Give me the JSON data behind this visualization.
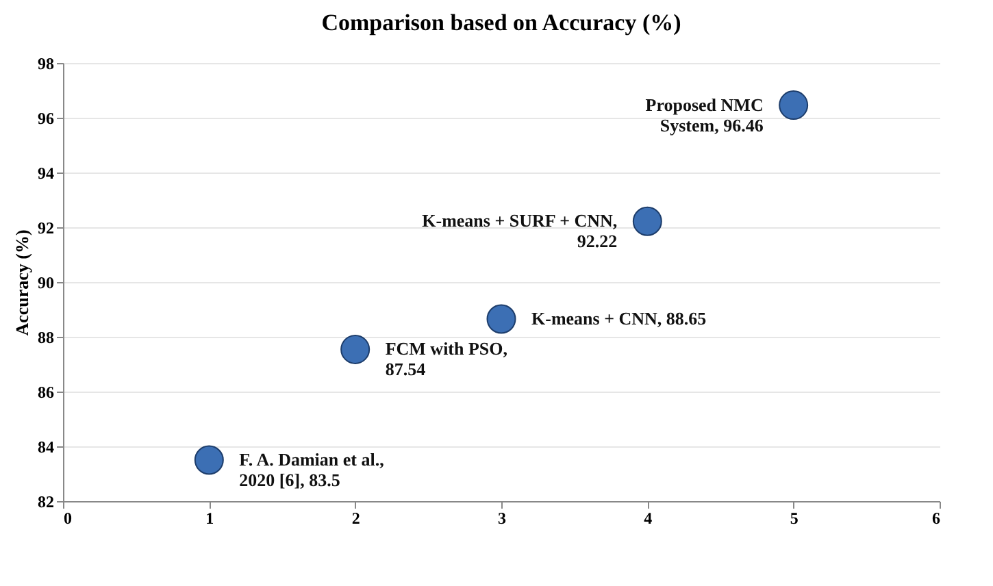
{
  "chart_data": {
    "type": "scatter",
    "title": "Comparison based on Accuracy (%)",
    "ylabel": "Accuracy (%)",
    "x": [
      1,
      2,
      3,
      4,
      5
    ],
    "series": [
      {
        "color": "#3c6fb4",
        "values": [
          83.5,
          87.54,
          88.65,
          92.22,
          96.46
        ]
      }
    ],
    "xlim": [
      0,
      6
    ],
    "xticks": [
      0,
      1,
      2,
      3,
      4,
      5,
      6
    ],
    "ylim": [
      82,
      98
    ],
    "yticks": [
      82,
      84,
      86,
      88,
      90,
      92,
      94,
      96,
      98
    ],
    "grid": "y",
    "marker": "circle",
    "annotations": [
      {
        "text": "F. A. Damian et al.,\n2020 [6], 83.5",
        "x": 1,
        "y": 83.5
      },
      {
        "text": "FCM with PSO,\n87.54",
        "x": 2,
        "y": 87.54
      },
      {
        "text": "K-means + CNN, 88.65",
        "x": 3,
        "y": 88.65
      },
      {
        "text": "K-means + SURF + CNN,\n92.22",
        "x": 4,
        "y": 92.22
      },
      {
        "text": "Proposed NMC\nSystem, 96.46",
        "x": 5,
        "y": 96.46
      }
    ]
  }
}
